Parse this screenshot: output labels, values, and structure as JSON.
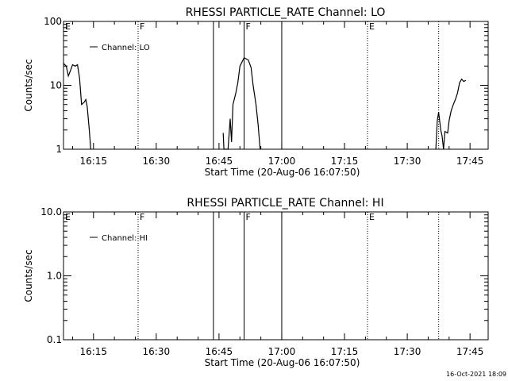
{
  "x_ticks": [
    "16:15",
    "16:30",
    "16:45",
    "17:00",
    "17:15",
    "17:30",
    "17:45"
  ],
  "xlabel": "Start Time (20-Aug-06 16:07:50)",
  "timestamp": "16-Oct-2021 18:09",
  "chart_data": [
    {
      "type": "line",
      "title": "RHESSI PARTICLE_RATE Channel: LO",
      "xlabel": "Start Time (20-Aug-06 16:07:50)",
      "ylabel": "Counts/sec",
      "y_scale": "log",
      "ylim": [
        1,
        100
      ],
      "y_ticks": [
        "1",
        "10",
        "100"
      ],
      "xlim": [
        "16:07:50",
        "17:49:20"
      ],
      "x_tick_values": [
        "16:15",
        "16:30",
        "16:45",
        "17:00",
        "17:15",
        "17:30",
        "17:45"
      ],
      "legend": {
        "position": "top-left",
        "entries": [
          "Channel: LO"
        ]
      },
      "grid": false,
      "series": [
        {
          "name": "Channel: LO",
          "segments": [
            [
              [
                "16:07:50",
                22
              ],
              [
                "16:08:30",
                20
              ],
              [
                "16:09:00",
                14
              ],
              [
                "16:09:30",
                17
              ],
              [
                "16:10:00",
                21
              ],
              [
                "16:10:40",
                20
              ],
              [
                "16:11:10",
                21
              ],
              [
                "16:11:40",
                13
              ],
              [
                "16:12:10",
                5
              ],
              [
                "16:12:50",
                5.5
              ],
              [
                "16:13:10",
                6
              ],
              [
                "16:13:30",
                4.6
              ],
              [
                "16:14:00",
                2
              ],
              [
                "16:14:20",
                1
              ]
            ],
            [
              [
                "16:46:00",
                1.8
              ],
              [
                "16:46:10",
                1
              ],
              [
                "16:47:10",
                1
              ],
              [
                "16:47:40",
                3
              ],
              [
                "16:48:00",
                1.3
              ],
              [
                "16:48:20",
                5
              ],
              [
                "16:49:00",
                7.5
              ],
              [
                "16:49:30",
                11
              ],
              [
                "16:50:00",
                20
              ],
              [
                "16:51:00",
                27
              ],
              [
                "16:52:00",
                25
              ],
              [
                "16:52:40",
                19
              ],
              [
                "16:53:10",
                10
              ],
              [
                "16:53:50",
                5
              ],
              [
                "16:54:20",
                2.5
              ],
              [
                "16:54:50",
                1
              ]
            ],
            [
              [
                "17:36:50",
                1
              ],
              [
                "17:37:10",
                2.8
              ],
              [
                "17:37:30",
                3.8
              ],
              [
                "17:38:00",
                2
              ],
              [
                "17:38:20",
                1.6
              ],
              [
                "17:38:40",
                1
              ],
              [
                "17:39:00",
                1.9
              ],
              [
                "17:39:40",
                1.8
              ],
              [
                "17:40:00",
                2.8
              ],
              [
                "17:40:30",
                4
              ],
              [
                "17:41:00",
                5
              ],
              [
                "17:41:30",
                6
              ],
              [
                "17:42:00",
                7.5
              ],
              [
                "17:42:30",
                11
              ],
              [
                "17:43:00",
                12.5
              ],
              [
                "17:43:30",
                11.5
              ],
              [
                "17:44:00",
                12
              ]
            ]
          ]
        }
      ],
      "vertical_lines": [
        {
          "time": "16:25:40",
          "style": "dotted",
          "label": "F"
        },
        {
          "time": "16:43:40",
          "style": "solid",
          "label": ""
        },
        {
          "time": "16:51:00",
          "style": "solid",
          "label": "F"
        },
        {
          "time": "17:00:00",
          "style": "solid",
          "label": ""
        },
        {
          "time": "17:20:30",
          "style": "dotted",
          "label": "E"
        },
        {
          "time": "17:37:30",
          "style": "dotted",
          "label": ""
        }
      ],
      "left_marker": "E"
    },
    {
      "type": "line",
      "title": "RHESSI PARTICLE_RATE Channel: HI",
      "xlabel": "Start Time (20-Aug-06 16:07:50)",
      "ylabel": "Counts/sec",
      "y_scale": "log",
      "ylim": [
        0.1,
        10
      ],
      "y_ticks": [
        "0.1",
        "1.0",
        "10.0"
      ],
      "xlim": [
        "16:07:50",
        "17:49:20"
      ],
      "x_tick_values": [
        "16:15",
        "16:30",
        "16:45",
        "17:00",
        "17:15",
        "17:30",
        "17:45"
      ],
      "legend": {
        "position": "top-left",
        "entries": [
          "Channel: HI"
        ]
      },
      "grid": false,
      "series": [
        {
          "name": "Channel: HI",
          "segments": []
        }
      ],
      "vertical_lines": [
        {
          "time": "16:25:40",
          "style": "dotted",
          "label": "F"
        },
        {
          "time": "16:43:40",
          "style": "solid",
          "label": ""
        },
        {
          "time": "16:51:00",
          "style": "solid",
          "label": "F"
        },
        {
          "time": "17:00:00",
          "style": "solid",
          "label": ""
        },
        {
          "time": "17:20:30",
          "style": "dotted",
          "label": "E"
        },
        {
          "time": "17:37:30",
          "style": "dotted",
          "label": ""
        }
      ],
      "left_marker": "E"
    }
  ]
}
